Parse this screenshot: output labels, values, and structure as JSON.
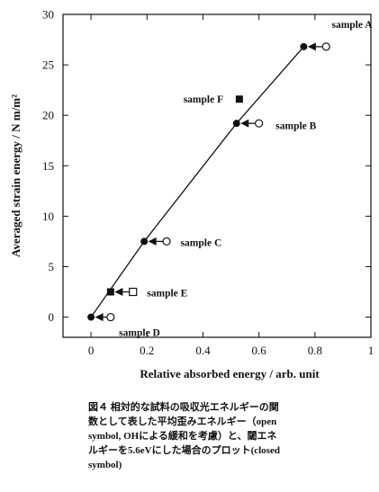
{
  "chart_data": {
    "type": "scatter",
    "xlabel": "Relative absorbed energy / arb. unit",
    "ylabel": "Averaged strain energy / N m/m²",
    "xlim": [
      -0.1,
      1
    ],
    "ylim": [
      -2,
      30
    ],
    "x_ticks": [
      0,
      0.2,
      0.4,
      0.6,
      0.8,
      1
    ],
    "x_tick_labels": [
      "0",
      "0.2",
      "0.4",
      "0.6",
      "0.8",
      "1"
    ],
    "y_ticks": [
      0,
      5,
      10,
      15,
      20,
      25,
      30
    ],
    "y_tick_labels": [
      "0",
      "5",
      "10",
      "15",
      "20",
      "25",
      "30"
    ],
    "grid": false,
    "series": [
      {
        "marker": "closed-circle",
        "points": [
          {
            "x": 0.0,
            "y": 0.0
          },
          {
            "x": 0.19,
            "y": 7.5
          },
          {
            "x": 0.52,
            "y": 19.2
          },
          {
            "x": 0.76,
            "y": 26.8
          }
        ]
      },
      {
        "marker": "open-circle",
        "points": [
          {
            "x": 0.07,
            "y": 0.0
          },
          {
            "x": 0.27,
            "y": 7.5
          },
          {
            "x": 0.6,
            "y": 19.2
          },
          {
            "x": 0.84,
            "y": 26.8
          }
        ]
      },
      {
        "marker": "closed-square",
        "points": [
          {
            "x": 0.07,
            "y": 2.5
          },
          {
            "x": 0.53,
            "y": 21.6
          }
        ]
      },
      {
        "marker": "open-square",
        "points": [
          {
            "x": 0.15,
            "y": 2.5
          }
        ]
      }
    ],
    "arrows": [
      {
        "from": [
          0.07,
          0.0
        ],
        "to": [
          0.0,
          0.0
        ]
      },
      {
        "from": [
          0.27,
          7.5
        ],
        "to": [
          0.19,
          7.5
        ]
      },
      {
        "from": [
          0.6,
          19.2
        ],
        "to": [
          0.52,
          19.2
        ]
      },
      {
        "from": [
          0.84,
          26.8
        ],
        "to": [
          0.76,
          26.8
        ]
      },
      {
        "from": [
          0.15,
          2.5
        ],
        "to": [
          0.07,
          2.5
        ]
      }
    ],
    "fit_line": {
      "points": [
        [
          0.0,
          0.0
        ],
        [
          0.19,
          7.5
        ],
        [
          0.52,
          19.2
        ],
        [
          0.76,
          26.8
        ]
      ]
    },
    "annotations": [
      {
        "text": "sample A",
        "x": 0.86,
        "y": 29.0
      },
      {
        "text": "sample B",
        "x": 0.66,
        "y": 19.0
      },
      {
        "text": "sample C",
        "x": 0.32,
        "y": 7.4
      },
      {
        "text": "sample D",
        "x": 0.1,
        "y": -1.5
      },
      {
        "text": "sample E",
        "x": 0.2,
        "y": 2.4
      },
      {
        "text": "sample F",
        "x": 0.33,
        "y": 21.6
      }
    ]
  },
  "caption": {
    "lines": [
      "図４ 相対的な試料の吸収光エネルギーの関",
      "数として表した平均歪みエネルギー（open",
      "symbol, OHによる緩和を考慮）と、閾エネ",
      "ルギーを5.6eVにした場合のプロット(closed",
      "symbol)"
    ]
  }
}
